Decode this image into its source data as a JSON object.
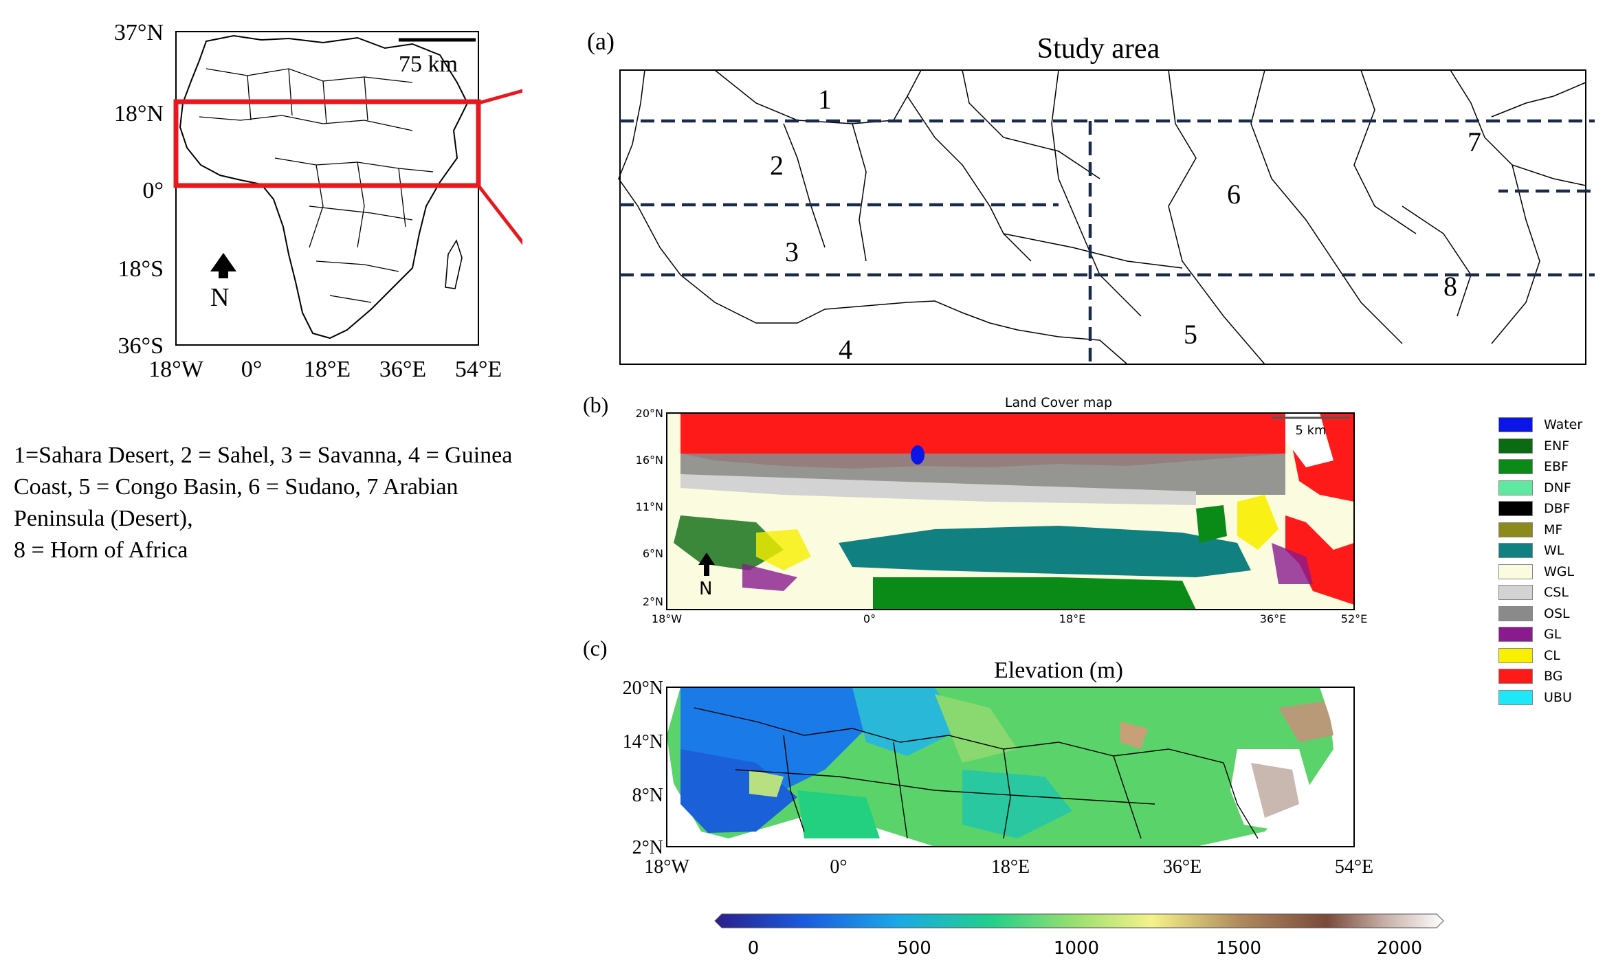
{
  "inset_map": {
    "lat_labels": [
      "37°N",
      "18°N",
      "0°",
      "18°S",
      "36°S"
    ],
    "lon_labels": [
      "18°W",
      "0°",
      "18°E",
      "36°E",
      "54°E"
    ],
    "scale_label": "75 km",
    "north_label": "N"
  },
  "region_legend": {
    "line1": "1=Sahara Desert, 2 = Sahel, 3 = Savanna, 4 = Guinea",
    "line2": "Coast, 5 = Congo Basin, 6 = Sudano, 7 Arabian",
    "line3": "Peninsula (Desert),",
    "line4": "8 = Horn of Africa"
  },
  "panel_a": {
    "tag": "(a)",
    "title": "Study area",
    "regions": [
      "1",
      "2",
      "3",
      "4",
      "5",
      "6",
      "7",
      "8"
    ]
  },
  "panel_b": {
    "tag": "(b)",
    "title": "Land Cover map",
    "scale_label": "5 km",
    "north_label": "N",
    "lat_labels": [
      "20°N",
      "16°N",
      "11°N",
      "6°N",
      "2°N"
    ],
    "lon_labels": [
      "18°W",
      "0°",
      "18°E",
      "36°E",
      "52°E"
    ],
    "legend": [
      {
        "label": "Water",
        "color": "#0a16e8"
      },
      {
        "label": "ENF",
        "color": "#0b6b12"
      },
      {
        "label": "EBF",
        "color": "#0a8a16"
      },
      {
        "label": "DNF",
        "color": "#5ee8a0"
      },
      {
        "label": "DBF",
        "color": "#000000"
      },
      {
        "label": "MF",
        "color": "#8c8a18"
      },
      {
        "label": "WL",
        "color": "#118080"
      },
      {
        "label": "WGL",
        "color": "#fbfbe0"
      },
      {
        "label": "CSL",
        "color": "#d3d3d3"
      },
      {
        "label": "OSL",
        "color": "#8a8a8a"
      },
      {
        "label": "GL",
        "color": "#8a1a8e"
      },
      {
        "label": "CL",
        "color": "#f8f000"
      },
      {
        "label": "BG",
        "color": "#ff1a1a"
      },
      {
        "label": "UBU",
        "color": "#1ee8f8"
      }
    ]
  },
  "panel_c": {
    "tag": "(c)",
    "title": "Elevation (m)",
    "lat_labels": [
      "20°N",
      "14°N",
      "8°N",
      "2°N"
    ],
    "lon_labels": [
      "18°W",
      "0°",
      "18°E",
      "36°E",
      "54°E"
    ],
    "colorbar_ticks": [
      "0",
      "500",
      "1000",
      "1500",
      "2000"
    ]
  },
  "colors": {
    "highlight": "#e8181e",
    "grid_dash": "#1a2a4a"
  }
}
